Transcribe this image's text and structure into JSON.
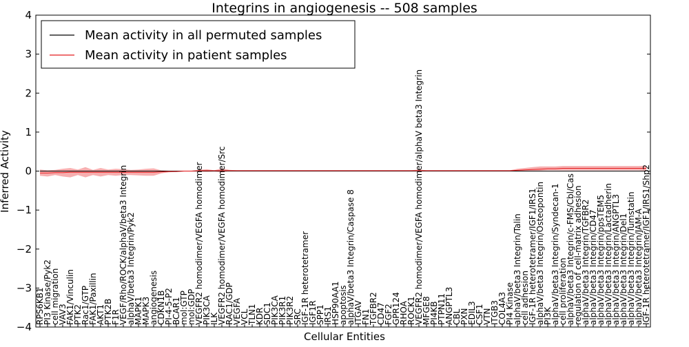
{
  "chart_data": {
    "type": "line",
    "title": "Integrins in angiogenesis -- 508 samples",
    "xlabel": "Cellular Entities",
    "ylabel": "Inferred Activity",
    "ylim": [
      -4,
      4
    ],
    "yticks": [
      -4,
      -3,
      -2,
      -1,
      0,
      1,
      2,
      3,
      4
    ],
    "ytick_labels": [
      "−4",
      "−3",
      "−2",
      "−1",
      "0",
      "1",
      "2",
      "3",
      "4"
    ],
    "legend": {
      "placement": "top-left",
      "entries": [
        {
          "label": "Mean activity in all permuted samples",
          "color": "#000000"
        },
        {
          "label": "Mean activity in patient samples",
          "color": "#e41a1c"
        }
      ]
    },
    "reference_line": {
      "y": 0,
      "style": "dotted"
    },
    "categories": [
      "RPS6KB1",
      "PI3 Kinase/Pyk2",
      "cell migration",
      "VAV3",
      "FAK1/Vinculin",
      "PTK2",
      "Rac1/GTP",
      "FAK1/Paxillin",
      "AKT1",
      "PTK2B",
      "F1R",
      "VEGF/Rho/ROCK/alphaV/beta3 Integrin",
      "alphaV/beta3 Integrin/Pyk2",
      "MAPK1",
      "MAPK3",
      "angiogenesis",
      "CDKN1B",
      "PI-4-5-P2",
      "BCAR1",
      "mol:GTP",
      "mol:GDP",
      "VEGFR2 homodimer/VEGFA homodimer",
      "PIK3CA",
      "ILK",
      "VEGFR2 homodimer/VEGFA homodimer/Src",
      "RAC1/GDP",
      "VEGFA",
      "VCL",
      "TLN1",
      "KDR",
      "SDC1",
      "PIK3CA",
      "PIK3R1",
      "PIK3R2",
      "SRC",
      "IGF-1R heterotetramer",
      "IGF1R",
      "SPP1",
      "IRS1",
      "HSP90AA1",
      "apoptosis",
      "alphaV/beta3 Integrin/Caspase 8",
      "ITGAV",
      "FN1",
      "TGFBR2",
      "CD47",
      "FGF2",
      "GPR124",
      "RHOA",
      "ROCK1",
      "VEGFR2 homodimer/VEGFA homodimer/alphaV beta3 Integrin",
      "MFGE8",
      "PI4KB",
      "PTPN11",
      "ANGPTL3",
      "CBL",
      "PXN",
      "EDIL3",
      "CSF1",
      "VTN",
      "ITGB3",
      "COL4A3",
      "PI4 Kinase",
      "alphaV/beta3 Integrin/Talin",
      "cell adhesion",
      "IGF-1R heterotetramer/IGF1/IRS1",
      "alphaV/beta3 Integrin/Osteopontin",
      "PI3K",
      "alphaV/beta3 Integrin/Syndecan-1",
      "cell proliferation",
      "alphaV/beta3 Integrin/c-FMS/Cbl/Cas",
      "regulation of cell-matrix adhesion",
      "alphaV/beta3 Integrin/TGFBR2",
      "alphaV/beta3 Integrin/CD47",
      "alphaV/beta3 Integrin/ppsTEM5",
      "alphaV/beta3 Integrin/Lactadherin",
      "alphaV/beta3 Integrin/ANGPTL3",
      "alphaV/beta3 Integrin/Del1",
      "alphaV/beta3 Integrin/Tumstatin",
      "alphaV/beta3 Integrin/JAM-A",
      "IGF-1R heterotetramer/IGF1/IRS1/Shp2"
    ],
    "series": [
      {
        "name": "Mean activity in all permuted samples",
        "color": "#000000",
        "values": [
          0,
          0,
          0,
          0,
          0,
          0,
          0,
          0,
          0,
          0,
          0,
          0,
          0,
          0,
          0,
          0,
          0,
          0,
          0,
          0,
          0,
          0,
          0,
          0,
          0,
          0,
          0,
          0,
          0,
          0,
          0,
          0,
          0,
          0,
          0,
          0,
          0,
          0,
          0,
          0,
          0,
          0,
          0,
          0,
          0,
          0,
          0,
          0,
          0,
          0,
          0,
          0,
          0,
          0,
          0,
          0,
          0,
          0,
          0,
          0,
          0,
          0,
          0,
          0,
          0,
          0,
          0,
          0,
          0,
          0,
          0,
          0,
          0,
          0,
          0,
          0,
          0,
          0,
          0,
          0,
          0
        ]
      },
      {
        "name": "Mean activity in patient samples",
        "color": "#e41a1c",
        "band_color": "#e41a1c",
        "values": [
          -0.05,
          -0.05,
          -0.04,
          -0.04,
          -0.03,
          -0.03,
          -0.03,
          -0.03,
          -0.03,
          -0.03,
          -0.03,
          -0.03,
          -0.03,
          -0.03,
          -0.03,
          -0.03,
          -0.02,
          -0.01,
          -0.01,
          0,
          0,
          0.01,
          0.01,
          0.01,
          0.01,
          0.01,
          0.01,
          0.01,
          0.01,
          0.01,
          0.01,
          0.01,
          0.01,
          0.01,
          0.01,
          0.01,
          0.01,
          0.01,
          0.01,
          0.01,
          0.01,
          0.01,
          0.01,
          0.01,
          0.01,
          0.01,
          0.01,
          0.01,
          0.01,
          0.01,
          0.01,
          0.01,
          0.01,
          0.01,
          0.01,
          0.01,
          0.01,
          0.01,
          0.01,
          0.01,
          0.01,
          0.01,
          0.01,
          0.02,
          0.03,
          0.04,
          0.05,
          0.06,
          0.06,
          0.07,
          0.07,
          0.07,
          0.07,
          0.07,
          0.07,
          0.07,
          0.07,
          0.07,
          0.07,
          0.07,
          0.07
        ],
        "upper": [
          0.04,
          0.02,
          0.03,
          0.06,
          0.08,
          0.04,
          0.1,
          0.03,
          0.08,
          0.04,
          0.06,
          0.05,
          0.03,
          0.04,
          0.06,
          0.07,
          0.02,
          0.01,
          0.01,
          0.01,
          0.01,
          0.03,
          0.05,
          0.02,
          0.07,
          0.03,
          0.02,
          0.02,
          0.02,
          0.02,
          0.02,
          0.02,
          0.02,
          0.02,
          0.02,
          0.02,
          0.02,
          0.02,
          0.02,
          0.02,
          0.02,
          0.02,
          0.02,
          0.02,
          0.02,
          0.02,
          0.02,
          0.02,
          0.02,
          0.02,
          0.04,
          0.02,
          0.02,
          0.02,
          0.02,
          0.02,
          0.02,
          0.02,
          0.02,
          0.02,
          0.02,
          0.02,
          0.02,
          0.06,
          0.08,
          0.1,
          0.12,
          0.12,
          0.12,
          0.13,
          0.13,
          0.13,
          0.13,
          0.13,
          0.13,
          0.13,
          0.13,
          0.13,
          0.13,
          0.13,
          0.14
        ],
        "lower": [
          -0.12,
          -0.14,
          -0.1,
          -0.14,
          -0.16,
          -0.1,
          -0.16,
          -0.1,
          -0.14,
          -0.1,
          -0.12,
          -0.1,
          -0.1,
          -0.11,
          -0.12,
          -0.12,
          -0.06,
          -0.03,
          -0.02,
          -0.01,
          -0.01,
          -0.01,
          -0.02,
          -0.01,
          -0.03,
          0,
          0,
          0,
          0,
          0,
          0,
          0,
          0,
          0,
          0,
          0,
          0,
          0,
          0,
          0,
          0,
          0,
          0,
          0,
          0,
          0,
          0,
          0,
          0,
          0,
          -0.01,
          0,
          0,
          0,
          0,
          0,
          0,
          0,
          0,
          0,
          0,
          0,
          0,
          0,
          0.01,
          0.01,
          0.01,
          0.02,
          0.02,
          0.02,
          0.02,
          0.02,
          0.02,
          0.02,
          0.02,
          0.02,
          0.02,
          0.02,
          0.02,
          0.02,
          0.01
        ]
      }
    ]
  }
}
